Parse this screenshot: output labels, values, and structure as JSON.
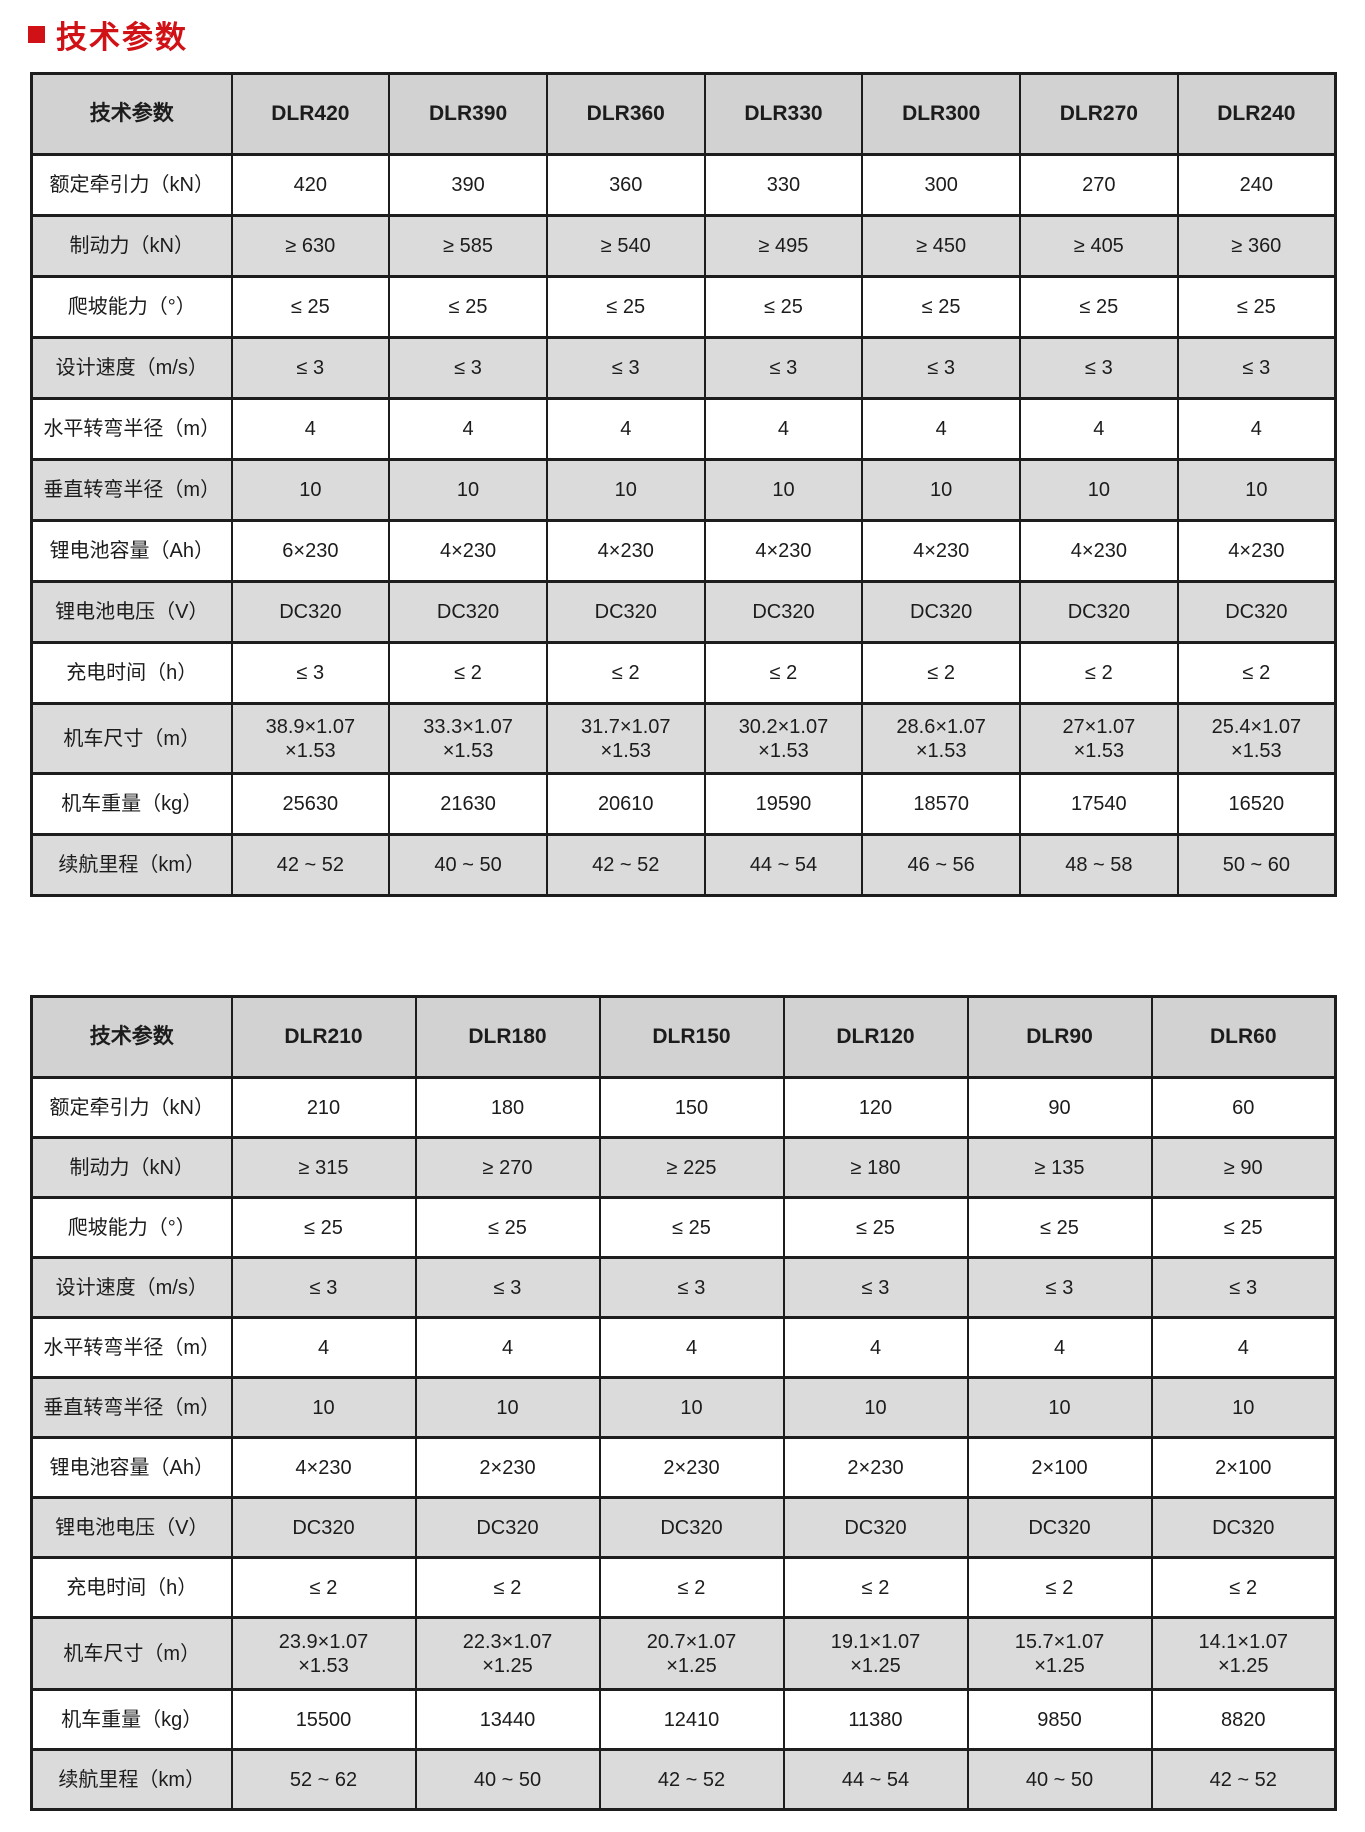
{
  "page": {
    "title": "技术参数"
  },
  "colors": {
    "accent_red": "#d01116",
    "header_gray": "#d2d2d2",
    "row_gray": "#dbdbdb",
    "border": "#1d1d1d"
  },
  "tables": [
    {
      "name": "spec-table-dlr420-dlr240",
      "header": [
        "技术参数",
        "DLR420",
        "DLR390",
        "DLR360",
        "DLR330",
        "DLR300",
        "DLR270",
        "DLR240"
      ],
      "rows": [
        {
          "label": "额定牵引力（kN）",
          "values": [
            "420",
            "390",
            "360",
            "330",
            "300",
            "270",
            "240"
          ]
        },
        {
          "label": "制动力（kN）",
          "values": [
            "≥ 630",
            "≥ 585",
            "≥ 540",
            "≥ 495",
            "≥ 450",
            "≥ 405",
            "≥ 360"
          ]
        },
        {
          "label": "爬坡能力（°）",
          "values": [
            "≤ 25",
            "≤ 25",
            "≤ 25",
            "≤ 25",
            "≤ 25",
            "≤ 25",
            "≤ 25"
          ]
        },
        {
          "label": "设计速度（m/s）",
          "values": [
            "≤ 3",
            "≤ 3",
            "≤ 3",
            "≤ 3",
            "≤ 3",
            "≤ 3",
            "≤ 3"
          ]
        },
        {
          "label": "水平转弯半径（m）",
          "values": [
            "4",
            "4",
            "4",
            "4",
            "4",
            "4",
            "4"
          ]
        },
        {
          "label": "垂直转弯半径（m）",
          "values": [
            "10",
            "10",
            "10",
            "10",
            "10",
            "10",
            "10"
          ]
        },
        {
          "label": "锂电池容量（Ah）",
          "values": [
            "6×230",
            "4×230",
            "4×230",
            "4×230",
            "4×230",
            "4×230",
            "4×230"
          ]
        },
        {
          "label": "锂电池电压（V）",
          "values": [
            "DC320",
            "DC320",
            "DC320",
            "DC320",
            "DC320",
            "DC320",
            "DC320"
          ]
        },
        {
          "label": "充电时间（h）",
          "values": [
            "≤ 3",
            "≤ 2",
            "≤ 2",
            "≤ 2",
            "≤ 2",
            "≤ 2",
            "≤ 2"
          ]
        },
        {
          "label": "机车尺寸（m）",
          "values": [
            "38.9×1.07\n×1.53",
            "33.3×1.07\n×1.53",
            "31.7×1.07\n×1.53",
            "30.2×1.07\n×1.53",
            "28.6×1.07\n×1.53",
            "27×1.07\n×1.53",
            "25.4×1.07\n×1.53"
          ]
        },
        {
          "label": "机车重量（kg）",
          "values": [
            "25630",
            "21630",
            "20610",
            "19590",
            "18570",
            "17540",
            "16520"
          ]
        },
        {
          "label": "续航里程（km）",
          "values": [
            "42 ~ 52",
            "40 ~ 50",
            "42 ~ 52",
            "44 ~ 54",
            "46 ~ 56",
            "48 ~ 58",
            "50 ~ 60"
          ]
        }
      ]
    },
    {
      "name": "spec-table-dlr210-dlr60",
      "header": [
        "技术参数",
        "DLR210",
        "DLR180",
        "DLR150",
        "DLR120",
        "DLR90",
        "DLR60"
      ],
      "rows": [
        {
          "label": "额定牵引力（kN）",
          "values": [
            "210",
            "180",
            "150",
            "120",
            "90",
            "60"
          ]
        },
        {
          "label": "制动力（kN）",
          "values": [
            "≥ 315",
            "≥ 270",
            "≥ 225",
            "≥ 180",
            "≥ 135",
            "≥ 90"
          ]
        },
        {
          "label": "爬坡能力（°）",
          "values": [
            "≤ 25",
            "≤ 25",
            "≤ 25",
            "≤ 25",
            "≤ 25",
            "≤ 25"
          ]
        },
        {
          "label": "设计速度（m/s）",
          "values": [
            "≤ 3",
            "≤ 3",
            "≤ 3",
            "≤ 3",
            "≤ 3",
            "≤ 3"
          ]
        },
        {
          "label": "水平转弯半径（m）",
          "values": [
            "4",
            "4",
            "4",
            "4",
            "4",
            "4"
          ]
        },
        {
          "label": "垂直转弯半径（m）",
          "values": [
            "10",
            "10",
            "10",
            "10",
            "10",
            "10"
          ]
        },
        {
          "label": "锂电池容量（Ah）",
          "values": [
            "4×230",
            "2×230",
            "2×230",
            "2×230",
            "2×100",
            "2×100"
          ]
        },
        {
          "label": "锂电池电压（V）",
          "values": [
            "DC320",
            "DC320",
            "DC320",
            "DC320",
            "DC320",
            "DC320"
          ]
        },
        {
          "label": "充电时间（h）",
          "values": [
            "≤ 2",
            "≤ 2",
            "≤ 2",
            "≤ 2",
            "≤ 2",
            "≤ 2"
          ]
        },
        {
          "label": "机车尺寸（m）",
          "values": [
            "23.9×1.07\n×1.53",
            "22.3×1.07\n×1.25",
            "20.7×1.07\n×1.25",
            "19.1×1.07\n×1.25",
            "15.7×1.07\n×1.25",
            "14.1×1.07\n×1.25"
          ]
        },
        {
          "label": "机车重量（kg）",
          "values": [
            "15500",
            "13440",
            "12410",
            "11380",
            "9850",
            "8820"
          ]
        },
        {
          "label": "续航里程（km）",
          "values": [
            "52 ~ 62",
            "40 ~ 50",
            "42 ~ 52",
            "44 ~ 54",
            "40 ~ 50",
            "42 ~ 52"
          ]
        }
      ]
    }
  ]
}
